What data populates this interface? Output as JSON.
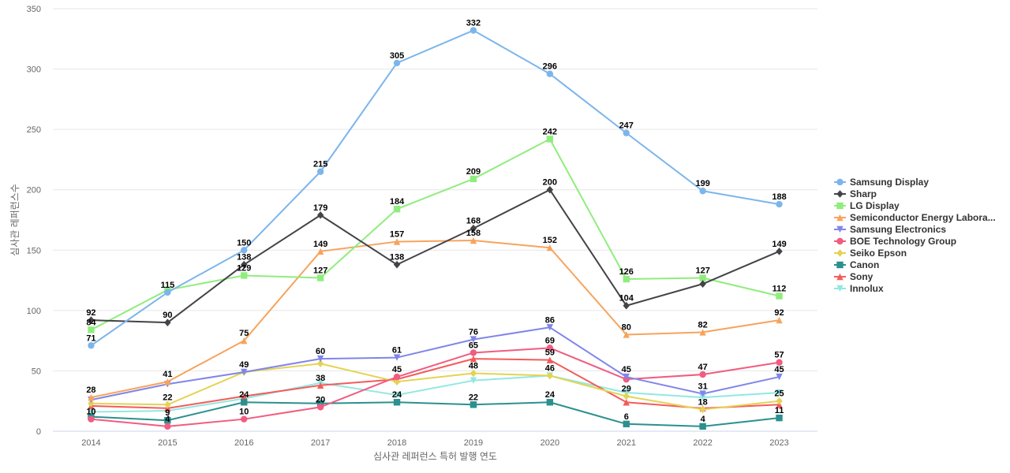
{
  "chart_data": {
    "type": "line",
    "title": "",
    "xlabel": "심사관 레퍼런스 특허 발행 연도",
    "ylabel": "심사관 레퍼런스수",
    "x": [
      "2014",
      "2015",
      "2016",
      "2017",
      "2018",
      "2019",
      "2020",
      "2021",
      "2022",
      "2023"
    ],
    "ylim": [
      0,
      350
    ],
    "yticks": [
      0,
      50,
      100,
      150,
      200,
      250,
      300,
      350
    ],
    "grid": true,
    "legend_position": "right",
    "series": [
      {
        "name": "Samsung Display",
        "color": "#7cb5ec",
        "marker": "circle",
        "values": [
          71,
          115,
          150,
          215,
          305,
          332,
          296,
          247,
          199,
          188
        ],
        "labels": [
          true,
          true,
          true,
          true,
          true,
          true,
          true,
          true,
          true,
          true
        ]
      },
      {
        "name": "Sharp",
        "color": "#434348",
        "marker": "diamond",
        "values": [
          92,
          90,
          138,
          179,
          138,
          168,
          200,
          104,
          122,
          149
        ],
        "labels": [
          true,
          true,
          true,
          true,
          true,
          true,
          true,
          true,
          false,
          true
        ]
      },
      {
        "name": "LG Display",
        "color": "#90ed7d",
        "marker": "square",
        "values": [
          84,
          117,
          129,
          127,
          184,
          209,
          242,
          126,
          127,
          112
        ],
        "labels": [
          true,
          false,
          true,
          true,
          true,
          true,
          true,
          true,
          true,
          true
        ]
      },
      {
        "name": "Semiconductor Energy Labora...",
        "color": "#f7a35c",
        "marker": "triangle",
        "values": [
          28,
          41,
          75,
          149,
          157,
          158,
          152,
          80,
          82,
          92
        ],
        "labels": [
          true,
          true,
          true,
          true,
          true,
          true,
          true,
          true,
          true,
          true
        ]
      },
      {
        "name": "Samsung Electronics",
        "color": "#8085e9",
        "marker": "triangle-down",
        "values": [
          26,
          39,
          49,
          60,
          61,
          76,
          86,
          45,
          31,
          45
        ],
        "labels": [
          false,
          false,
          true,
          true,
          true,
          true,
          true,
          true,
          true,
          true
        ]
      },
      {
        "name": "BOE Technology Group",
        "color": "#f15c80",
        "marker": "circle",
        "values": [
          10,
          4,
          10,
          20,
          45,
          65,
          69,
          43,
          47,
          57
        ],
        "labels": [
          true,
          true,
          true,
          true,
          true,
          true,
          true,
          false,
          true,
          true
        ]
      },
      {
        "name": "Seiko Epson",
        "color": "#e4d354",
        "marker": "diamond",
        "values": [
          23,
          22,
          49,
          56,
          41,
          48,
          46,
          29,
          18,
          25
        ],
        "labels": [
          false,
          true,
          false,
          false,
          false,
          true,
          true,
          true,
          true,
          true
        ]
      },
      {
        "name": "Canon",
        "color": "#2b908f",
        "marker": "square",
        "values": [
          12,
          9,
          24,
          23,
          24,
          22,
          24,
          6,
          4,
          11
        ],
        "labels": [
          false,
          true,
          true,
          false,
          true,
          true,
          true,
          true,
          true,
          true
        ]
      },
      {
        "name": "Sony",
        "color": "#f45b5b",
        "marker": "triangle",
        "values": [
          21,
          19,
          29,
          38,
          43,
          60,
          59,
          24,
          19,
          22
        ],
        "labels": [
          false,
          false,
          false,
          true,
          false,
          false,
          true,
          false,
          false,
          false
        ]
      },
      {
        "name": "Innolux",
        "color": "#91e8e1",
        "marker": "triangle-down",
        "values": [
          16,
          17,
          27,
          40,
          30,
          42,
          46,
          32,
          28,
          32
        ],
        "labels": [
          false,
          false,
          false,
          false,
          false,
          false,
          false,
          false,
          false,
          false
        ]
      }
    ]
  }
}
